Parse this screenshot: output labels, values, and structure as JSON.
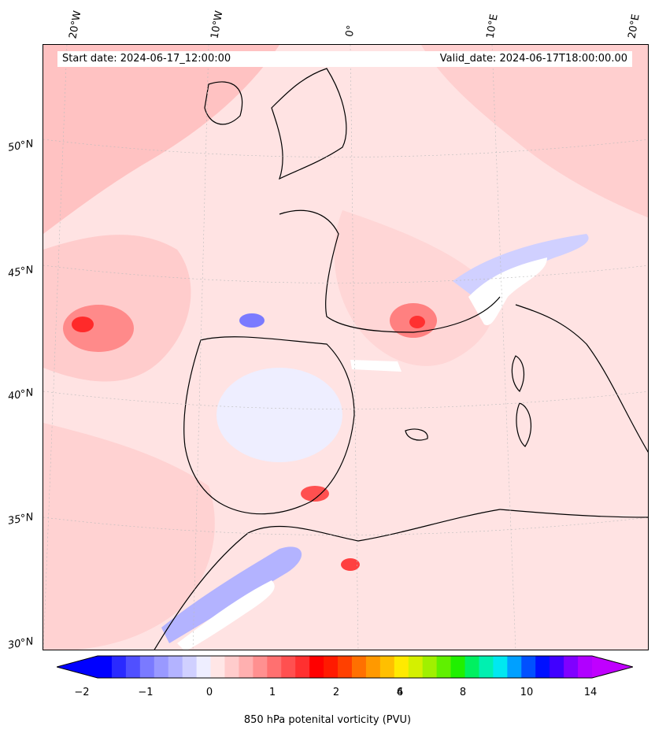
{
  "map": {
    "start_date": "Start date: 2024-06-17_12:00:00",
    "valid_date": "Valid_date: 2024-06-17T18:00:00.00",
    "longitude_labels": [
      "20°W",
      "10°W",
      "0°",
      "10°E",
      "20°E"
    ],
    "latitude_labels": [
      "50°N",
      "45°N",
      "40°N",
      "35°N",
      "30°N"
    ]
  },
  "colorbar": {
    "label": "850 hPa potenital vorticity (PVU)",
    "tick_labels": [
      "−2",
      "−1",
      "0",
      "1",
      "2",
      "4",
      "6",
      "8",
      "10",
      "14"
    ],
    "colors": [
      "#0000ff",
      "#2a2aff",
      "#5050ff",
      "#7a7aff",
      "#9999ff",
      "#b3b3ff",
      "#d0d0ff",
      "#eeeeff",
      "#ffe6e6",
      "#ffcccc",
      "#ffb0b0",
      "#ff9090",
      "#ff7070",
      "#ff5050",
      "#ff3030",
      "#ff0000",
      "#ff1a00",
      "#ff4000",
      "#ff7000",
      "#ff9900",
      "#ffbf00",
      "#ffea00",
      "#d4f000",
      "#a0f000",
      "#60f000",
      "#20f000",
      "#00f060",
      "#00f0b0",
      "#00e8f0",
      "#00a0ff",
      "#0050ff",
      "#0010ff",
      "#4000ff",
      "#8000ff",
      "#b000ff"
    ],
    "under_color": "#0000ff",
    "over_color": "#c000ff"
  }
}
